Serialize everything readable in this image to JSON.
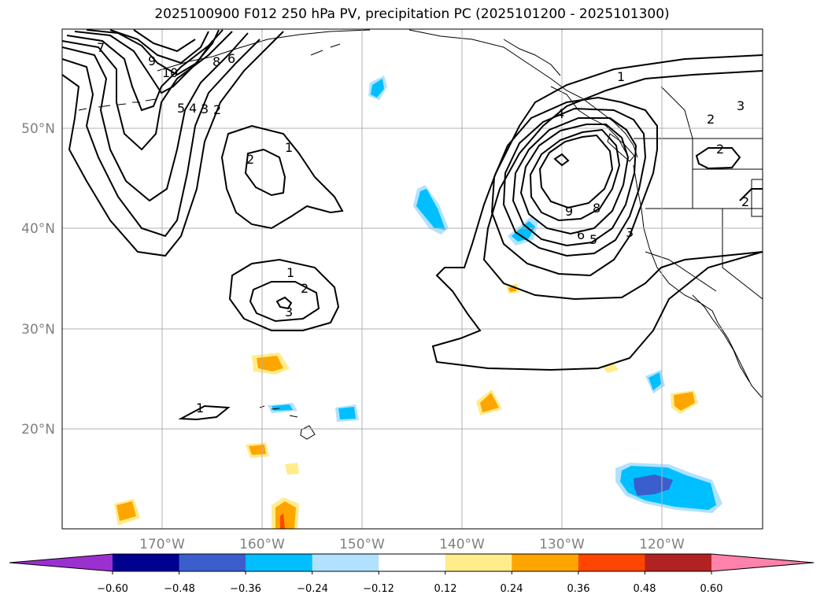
{
  "title": "2025100900 F012 250 hPa PV, precipitation PC (2025101200 - 2025101300)",
  "map": {
    "lat_labels": [
      "50°N",
      "40°N",
      "30°N",
      "20°N"
    ],
    "lon_labels": [
      "170°W",
      "160°W",
      "150°W",
      "140°W",
      "130°W",
      "120°W"
    ],
    "lat_range": [
      10,
      60
    ],
    "lon_range": [
      -180,
      -110
    ]
  },
  "contour_labels": [
    "7",
    "9",
    "10",
    "8",
    "6",
    "5",
    "4",
    "3",
    "2",
    "2",
    "1",
    "1",
    "2",
    "3",
    "1",
    "1",
    "4",
    "9",
    "8",
    "6",
    "5",
    "3",
    "3",
    "2",
    "2",
    "2"
  ],
  "colorbar": {
    "ticks": [
      "−0.60",
      "−0.48",
      "−0.36",
      "−0.24",
      "−0.12",
      "0.12",
      "0.24",
      "0.36",
      "0.48",
      "0.60"
    ],
    "colors": [
      "#9b30d0",
      "#000090",
      "#3a5fcd",
      "#00bfff",
      "#b0e2ff",
      "#ffffff",
      "#ffec8b",
      "#ffa500",
      "#ff4500",
      "#b22222",
      "#ff82ab"
    ],
    "extend": "both"
  }
}
